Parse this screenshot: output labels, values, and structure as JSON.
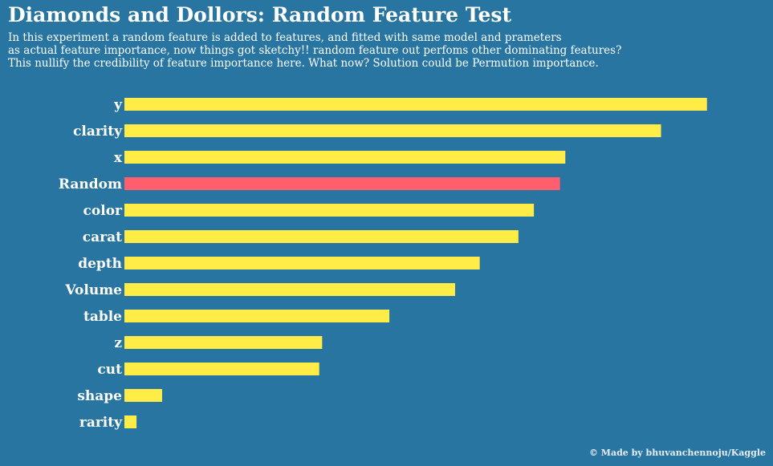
{
  "title": "Diamonds and Dollors: Random Feature Test",
  "subtitle_lines": [
    "In this experiment a random feature is added to features, and fitted with same model and prameters",
    "as actual feature importance, now things got sketchy!! random feature out perfoms other dominating features?",
    "This nullify the credibility of feature importance here. What now? Solution could be Permution importance."
  ],
  "credit": "© Made by bhuvanchennoju/Kaggle",
  "colors": {
    "background": "#2775a0",
    "bar": "#ffec47",
    "highlight": "#ff5e6c",
    "text": "#ffffff"
  },
  "chart_data": {
    "type": "bar",
    "orientation": "horizontal",
    "categories": [
      "y",
      "clarity",
      "x",
      "Random",
      "color",
      "carat",
      "depth",
      "Volume",
      "table",
      "z",
      "cut",
      "shape",
      "rarity"
    ],
    "values": [
      0.1205,
      0.111,
      0.0912,
      0.0901,
      0.0847,
      0.0815,
      0.0735,
      0.0684,
      0.0548,
      0.0409,
      0.0403,
      0.0078,
      0.0025
    ],
    "highlight_category": "Random",
    "xlim": [
      0,
      0.132
    ],
    "grid": false,
    "xaxis_visible": false
  }
}
